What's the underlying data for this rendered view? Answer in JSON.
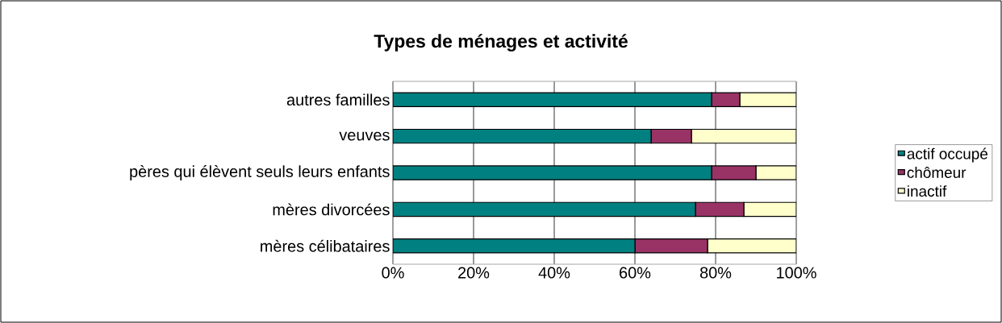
{
  "chart_data": {
    "type": "bar",
    "orientation": "horizontal",
    "stacked": true,
    "title": "Types de ménages et activité",
    "categories": [
      "autres familles",
      "veuves",
      "pères qui élèvent seuls leurs enfants",
      "mères divorcées",
      "mères célibataires"
    ],
    "series": [
      {
        "name": "actif occupé",
        "color": "#008080",
        "values": [
          79,
          64,
          79,
          75,
          60
        ]
      },
      {
        "name": "chômeur",
        "color": "#993366",
        "values": [
          7,
          10,
          11,
          12,
          18
        ]
      },
      {
        "name": "inactif",
        "color": "#ffffcc",
        "values": [
          14,
          26,
          10,
          13,
          22
        ]
      }
    ],
    "xlim": [
      0,
      100
    ],
    "xticks": [
      {
        "value": 0,
        "label": "0%"
      },
      {
        "value": 20,
        "label": "20%"
      },
      {
        "value": 40,
        "label": "40%"
      },
      {
        "value": 60,
        "label": "60%"
      },
      {
        "value": 80,
        "label": "80%"
      },
      {
        "value": 100,
        "label": "100%"
      }
    ],
    "grid": "x",
    "legend": "right"
  }
}
